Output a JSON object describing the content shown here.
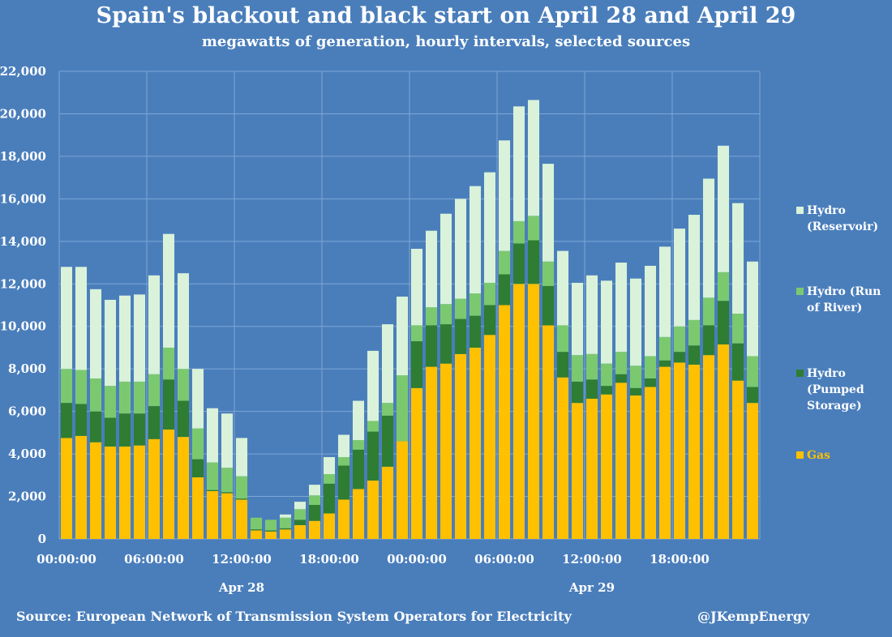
{
  "chart_data": {
    "type": "bar",
    "stacked": true,
    "title": "Spain's blackout and black start on April 28 and April 29",
    "subtitle": "megawatts of generation, hourly intervals, selected sources",
    "ylim": [
      0,
      22000
    ],
    "yticks": [
      0,
      2000,
      4000,
      6000,
      8000,
      10000,
      12000,
      14000,
      16000,
      18000,
      20000,
      22000
    ],
    "ytick_labels": [
      "0",
      "2,000",
      "4,000",
      "6,000",
      "8,000",
      "10,000",
      "12,000",
      "14,000",
      "16,000",
      "18,000",
      "20,000",
      "22,000"
    ],
    "x_tick_labels": [
      {
        "hour": 0,
        "label": "00:00:00"
      },
      {
        "hour": 6,
        "label": "06:00:00"
      },
      {
        "hour": 12,
        "label": "12:00:00"
      },
      {
        "hour": 18,
        "label": "18:00:00"
      },
      {
        "hour": 24,
        "label": "00:00:00"
      },
      {
        "hour": 30,
        "label": "06:00:00"
      },
      {
        "hour": 36,
        "label": "12:00:00"
      },
      {
        "hour": 42,
        "label": "18:00:00"
      }
    ],
    "date_labels": [
      {
        "hour": 12,
        "label": "Apr 28"
      },
      {
        "hour": 36,
        "label": "Apr 29"
      }
    ],
    "grid": true,
    "legend_position": "right",
    "series": [
      {
        "name": "Gas",
        "color": "#ffc000",
        "values": [
          4750,
          4850,
          4550,
          4350,
          4350,
          4400,
          4700,
          5150,
          4800,
          2900,
          2250,
          2150,
          1850,
          400,
          350,
          450,
          650,
          850,
          1200,
          1850,
          2350,
          2750,
          3400,
          4600,
          7100,
          8100,
          8250,
          8700,
          9000,
          9600,
          11000,
          12000,
          12000,
          10050,
          7600,
          6400,
          6600,
          6800,
          7350,
          6750,
          7150,
          8100,
          8300,
          8200,
          8650,
          9150,
          7450,
          6400
        ]
      },
      {
        "name": "Hydro (Pumped Storage)",
        "color": "#2e7d32",
        "values": [
          1650,
          1500,
          1450,
          1350,
          1550,
          1500,
          1550,
          2350,
          1700,
          850,
          50,
          50,
          50,
          50,
          50,
          50,
          250,
          750,
          1400,
          1600,
          1850,
          2300,
          2400,
          0,
          2200,
          1950,
          1850,
          1650,
          1500,
          1400,
          1450,
          1900,
          2050,
          1850,
          1200,
          1000,
          900,
          400,
          400,
          350,
          400,
          300,
          500,
          900,
          1400,
          2050,
          1750,
          750
        ]
      },
      {
        "name": "Hydro (Run of River)",
        "color": "#7bc96f",
        "values": [
          1600,
          1600,
          1550,
          1500,
          1500,
          1500,
          1500,
          1500,
          1500,
          1450,
          1300,
          1150,
          1050,
          550,
          500,
          500,
          500,
          450,
          450,
          400,
          450,
          500,
          600,
          3100,
          750,
          850,
          950,
          950,
          1050,
          1050,
          1100,
          1050,
          1150,
          1150,
          1250,
          1250,
          1200,
          1050,
          1050,
          1050,
          1050,
          1100,
          1200,
          1200,
          1300,
          1350,
          1400,
          1450
        ]
      },
      {
        "name": "Hydro (Reservoir)",
        "color": "#d9f2d9",
        "values": [
          4800,
          4850,
          4200,
          4050,
          4050,
          4100,
          4650,
          5350,
          4500,
          2800,
          2550,
          2550,
          1800,
          0,
          0,
          150,
          350,
          500,
          800,
          1050,
          1850,
          3300,
          3700,
          3700,
          3600,
          3600,
          4250,
          4700,
          5050,
          5200,
          5200,
          5400,
          5450,
          4600,
          3500,
          3400,
          3700,
          3900,
          4200,
          4100,
          4250,
          4250,
          4600,
          4950,
          5600,
          5950,
          5200,
          4450
        ]
      }
    ]
  },
  "footer": {
    "source": "Source: European Network of Transmission System Operators for Electricity",
    "handle": "@JKempEnergy"
  },
  "legend": [
    {
      "label_lines": [
        "Hydro",
        "(Reservoir)"
      ],
      "color": "#d9f2d9",
      "text_color": "#ffffff"
    },
    {
      "label_lines": [
        "Hydro (Run",
        "of River)"
      ],
      "color": "#7bc96f",
      "text_color": "#ffffff"
    },
    {
      "label_lines": [
        "Hydro",
        "(Pumped",
        "Storage)"
      ],
      "color": "#2e7d32",
      "text_color": "#ffffff"
    },
    {
      "label_lines": [
        "Gas"
      ],
      "color": "#ffc000",
      "text_color": "#ffc000"
    }
  ]
}
